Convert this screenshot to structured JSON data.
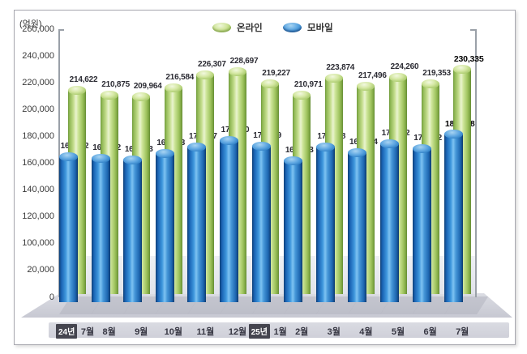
{
  "unit_label": "(억원)",
  "chart_data": {
    "type": "bar",
    "title": "",
    "unit": "(억원)",
    "categories": [
      "24년 7월",
      "8월",
      "9월",
      "10월",
      "11월",
      "12월",
      "25년 1월",
      "2월",
      "3월",
      "4월",
      "5월",
      "6월",
      "7월"
    ],
    "months": [
      "7월",
      "8월",
      "9월",
      "10월",
      "11월",
      "12월",
      "1월",
      "2월",
      "3월",
      "4월",
      "5월",
      "6월",
      "7월"
    ],
    "year_badges": [
      {
        "index": 0,
        "label": "24년"
      },
      {
        "index": 6,
        "label": "25년"
      }
    ],
    "series": [
      {
        "name": "온라인",
        "color": "#a4c96a",
        "values": [
          214622,
          210875,
          209964,
          216584,
          226307,
          228697,
          219227,
          210971,
          223874,
          217496,
          224260,
          219353,
          230335
        ]
      },
      {
        "name": "모바일",
        "color": "#2e86d0",
        "values": [
          165092,
          163872,
          162713,
          167293,
          172327,
          176990,
          172929,
          161553,
          172008,
          167824,
          174272,
          170682,
          181568
        ]
      }
    ],
    "y_ticks": [
      260000,
      240000,
      220000,
      200000,
      180000,
      160000,
      140000,
      120000,
      100000,
      20000,
      0
    ],
    "ylim": [
      0,
      260000
    ],
    "axis_break_between": [
      20000,
      100000
    ],
    "grid": false,
    "legend_position": "top",
    "highlight_last_index": 12
  }
}
